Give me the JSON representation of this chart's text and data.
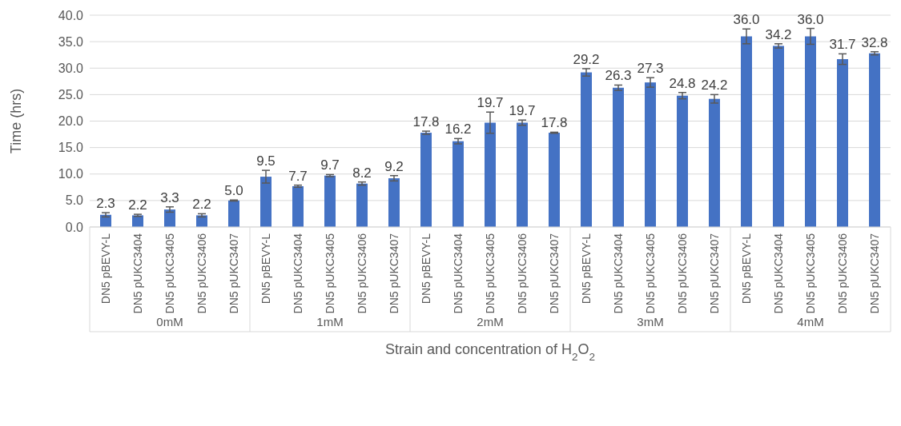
{
  "chart_data": {
    "type": "bar",
    "xlabel": "Strain and concentration of H$_{2}$O$_{2}$",
    "ylabel": "Time (hrs)",
    "categories": [
      "DN5 pBEVY-L",
      "DN5 pUKC3404",
      "DN5 pUKC3405",
      "DN5 pUKC3406",
      "DN5 pUKC3407",
      "DN5 pBEVY-L",
      "DN5 pUKC3404",
      "DN5 pUKC3405",
      "DN5 pUKC3406",
      "DN5 pUKC3407",
      "DN5 pBEVY-L",
      "DN5 pUKC3404",
      "DN5 pUKC3405",
      "DN5 pUKC3406",
      "DN5 pUKC3407",
      "DN5 pBEVY-L",
      "DN5 pUKC3404",
      "DN5 pUKC3405",
      "DN5 pUKC3406",
      "DN5 pUKC3407",
      "DN5 pBEVY-L",
      "DN5 pUKC3404",
      "DN5 pUKC3405",
      "DN5 pUKC3406",
      "DN5 pUKC3407"
    ],
    "values": [
      2.3,
      2.2,
      3.3,
      2.2,
      5.0,
      9.5,
      7.7,
      9.7,
      8.2,
      9.2,
      17.8,
      16.2,
      19.7,
      19.7,
      17.8,
      29.2,
      26.3,
      27.3,
      24.8,
      24.2,
      36.0,
      34.2,
      36.0,
      31.7,
      32.8
    ],
    "errors": [
      0.4,
      0.2,
      0.5,
      0.3,
      0.1,
      1.2,
      0.2,
      0.2,
      0.3,
      0.5,
      0.3,
      0.5,
      2.0,
      0.5,
      0.1,
      0.7,
      0.5,
      0.9,
      0.6,
      0.8,
      1.4,
      0.4,
      1.5,
      1.0,
      0.3
    ],
    "color": "#4472c4",
    "annotations": [
      "0mM",
      "1mM",
      "2mM",
      "3mM",
      "4mM"
    ],
    "ylim": [
      0,
      40
    ],
    "yticks": [
      {
        "value": 0,
        "label": "0.0"
      },
      {
        "value": 5,
        "label": "5.0"
      },
      {
        "value": 10,
        "label": "10.0"
      },
      {
        "value": 15,
        "label": "15.0"
      },
      {
        "value": 20,
        "label": "20.0"
      },
      {
        "value": 25,
        "label": "25.0"
      },
      {
        "value": 30,
        "label": "30.0"
      },
      {
        "value": 35,
        "label": "35.0"
      },
      {
        "value": 40,
        "label": "40.0"
      }
    ],
    "value_labels": [
      "2.3",
      "2.2",
      "3.3",
      "2.2",
      "5.0",
      "9.5",
      "7.7",
      "9.7",
      "8.2",
      "9.2",
      "17.8",
      "16.2",
      "19.7",
      "19.7",
      "17.8",
      "29.2",
      "26.3",
      "27.3",
      "24.8",
      "24.2",
      "36.0",
      "34.2",
      "36.0",
      "31.7",
      "32.8"
    ],
    "grid": "y"
  }
}
